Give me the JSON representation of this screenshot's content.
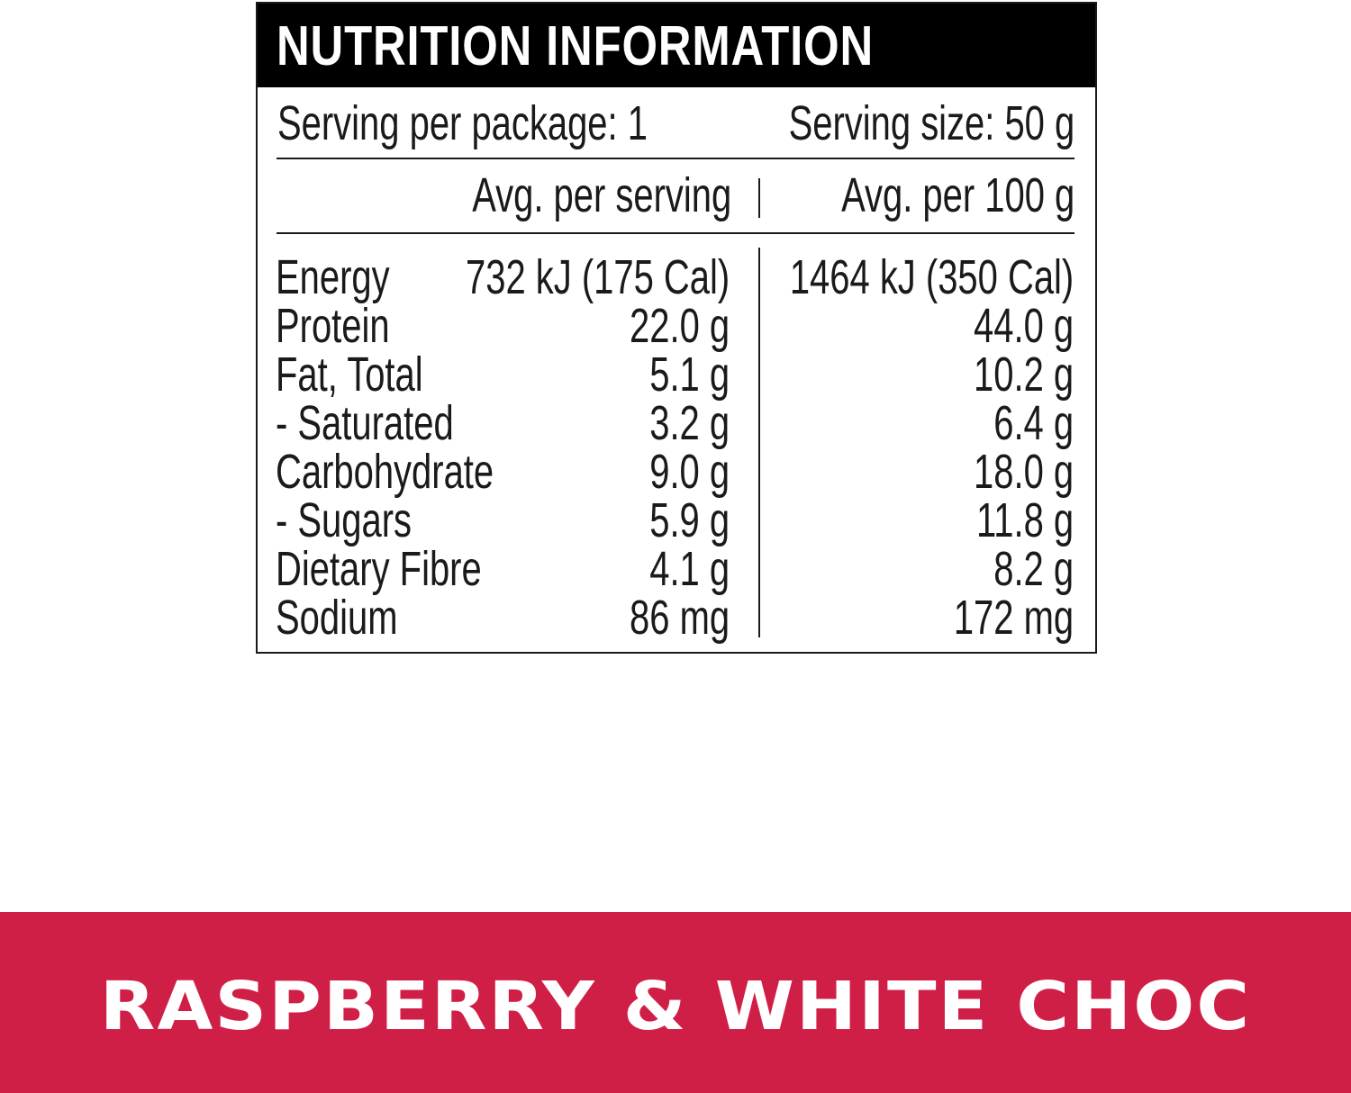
{
  "title": "NUTRITION INFORMATION",
  "serving": {
    "per_package": "Serving per package: 1",
    "size": "Serving size: 50 g"
  },
  "columns": [
    "Avg. per serving",
    "Avg. per 100 g"
  ],
  "table": {
    "rows": [
      [
        "Energy",
        "732 kJ (175 Cal)",
        "1464 kJ (350 Cal)"
      ],
      [
        "Protein",
        "22.0 g",
        "44.0 g"
      ],
      [
        "Fat, Total",
        "5.1 g",
        "10.2 g"
      ],
      [
        "- Saturated",
        "3.2 g",
        "6.4 g"
      ],
      [
        "Carbohydrate",
        "9.0 g",
        "18.0 g"
      ],
      [
        "- Sugars",
        "5.9 g",
        "11.8 g"
      ],
      [
        "Dietary Fibre",
        "4.1 g",
        "8.2 g"
      ],
      [
        "Sodium",
        "86 mg",
        "172 mg"
      ]
    ]
  },
  "banner": "RASPBERRY & WHITE CHOC"
}
